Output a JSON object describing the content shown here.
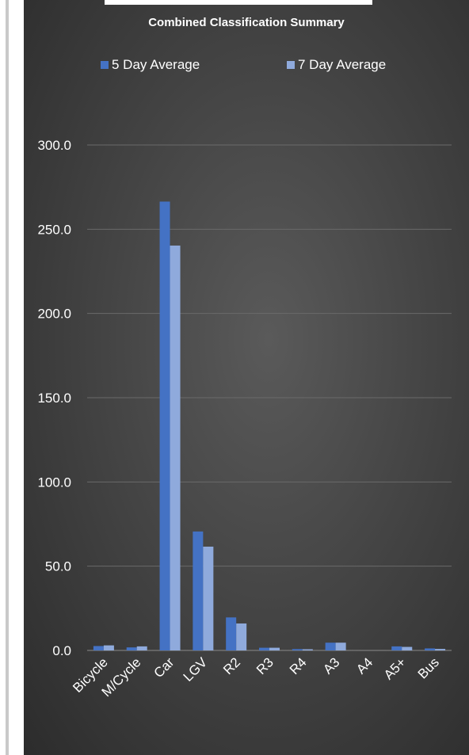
{
  "chart_data": {
    "type": "bar",
    "title": "Combined Classification Summary",
    "categories": [
      "Bicycle",
      "M/Cycle",
      "Car",
      "LGV",
      "R2",
      "R3",
      "R4",
      "A3",
      "A4",
      "A5+",
      "Bus"
    ],
    "series": [
      {
        "name": "5 Day Average",
        "color": "#4472c4",
        "values": [
          2.6,
          1.8,
          266.4,
          70.6,
          19.6,
          1.6,
          0.8,
          4.6,
          0.0,
          2.4,
          1.2
        ]
      },
      {
        "name": "7 Day Average",
        "color": "#8faadc",
        "values": [
          3.0,
          2.4,
          240.3,
          61.6,
          16.0,
          1.6,
          0.7,
          4.6,
          0.0,
          2.1,
          0.9
        ]
      }
    ],
    "yticks": [
      "0.0",
      "50.0",
      "100.0",
      "150.0",
      "200.0",
      "250.0",
      "300.0"
    ],
    "ylim": [
      0,
      300
    ],
    "xlabel": "",
    "ylabel": "",
    "legend_position": "top",
    "grid": true
  }
}
